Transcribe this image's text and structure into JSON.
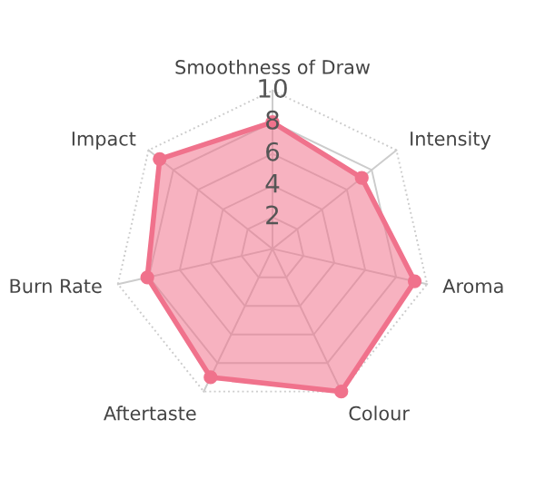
{
  "chart_data": {
    "type": "radar",
    "categories": [
      "Smoothness of Draw",
      "Intensity",
      "Aroma",
      "Colour",
      "Aftertaste",
      "Burn Rate",
      "Impact"
    ],
    "series": [
      {
        "color": "#f0728c",
        "values": [
          8.0,
          7.2,
          9.2,
          10.0,
          9.0,
          8.1,
          9.1
        ]
      }
    ],
    "ylim": [
      0,
      10
    ],
    "yticks": [
      2,
      4,
      6,
      8,
      10
    ],
    "grid": true,
    "marker": "circle",
    "legend": false
  }
}
